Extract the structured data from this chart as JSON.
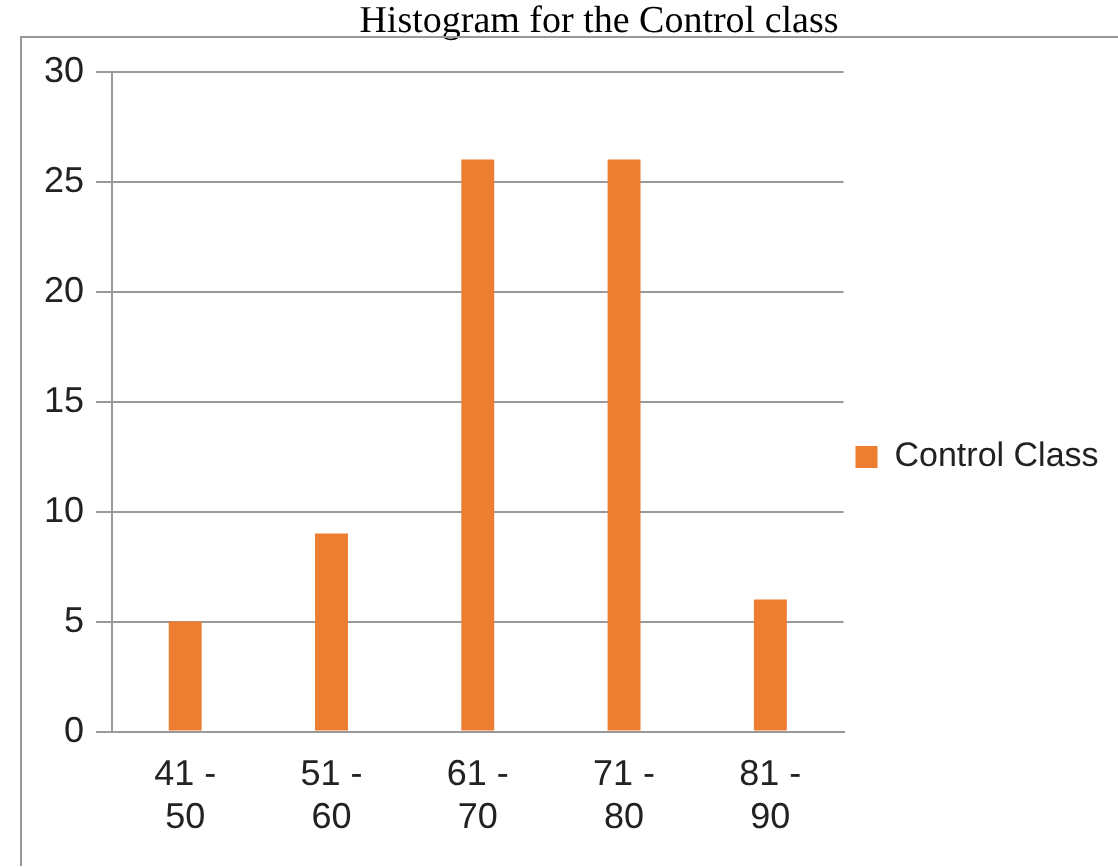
{
  "chart_data": {
    "type": "bar",
    "title": "Histogram for the Control class",
    "categories": [
      "41 - 50",
      "51 - 60",
      "61 - 70",
      "71 - 80",
      "81 - 90"
    ],
    "series": [
      {
        "name": "Control Class",
        "color": "#ed7d31",
        "values": [
          5,
          9,
          26,
          26,
          6
        ]
      }
    ],
    "ylim": [
      0,
      30
    ],
    "yticks": [
      0,
      5,
      10,
      15,
      20,
      25,
      30
    ],
    "grid": "y",
    "legend": "right"
  }
}
